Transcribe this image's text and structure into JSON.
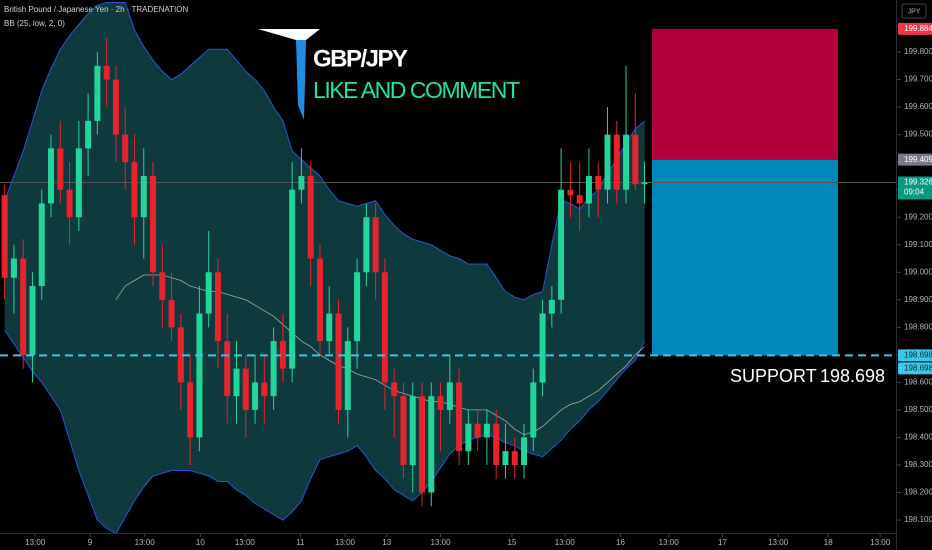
{
  "header": {
    "symbol_title": "British Pound / Japanese Yen · 2h · TRADENATION",
    "indicator": "BB (25, low, 2, 0)",
    "currency": "JPY"
  },
  "chart_data": {
    "type": "candlestick",
    "title": "GBP/JPY",
    "subtitle": "LIKE AND COMMENT",
    "open": [
      199.28,
      198.98,
      199.05,
      198.7,
      198.95,
      199.25,
      199.45,
      199.3,
      199.2,
      199.45,
      199.55,
      199.75,
      199.7,
      199.5,
      199.4,
      199.2,
      199.35,
      199.0,
      198.9,
      198.8,
      198.6,
      198.4,
      198.85,
      199.0,
      198.75,
      198.55,
      198.65,
      198.5,
      198.6,
      198.55,
      198.75,
      198.65,
      199.3,
      199.35,
      199.05,
      198.75,
      198.85,
      198.5,
      198.75,
      199.0,
      199.2,
      199.0,
      198.6,
      198.55,
      198.3,
      198.55,
      198.2,
      198.55,
      198.5,
      198.6,
      198.35,
      198.45,
      198.4,
      198.45,
      198.3,
      198.35,
      198.3,
      198.4,
      198.6,
      198.85,
      198.9,
      199.3,
      199.28,
      199.25,
      199.35,
      199.3,
      199.5,
      199.3,
      199.5,
      199.32
    ],
    "high": [
      199.32,
      199.1,
      199.12,
      199.0,
      199.3,
      199.5,
      199.55,
      199.4,
      199.55,
      199.65,
      199.8,
      199.85,
      199.75,
      199.6,
      199.5,
      199.45,
      199.4,
      199.1,
      199.0,
      198.85,
      198.7,
      198.95,
      199.15,
      199.05,
      198.85,
      198.75,
      198.7,
      198.7,
      198.7,
      198.8,
      198.85,
      199.4,
      199.45,
      199.4,
      199.1,
      198.95,
      198.9,
      198.8,
      199.05,
      199.25,
      199.25,
      199.05,
      198.65,
      198.6,
      198.6,
      198.6,
      198.6,
      198.6,
      198.7,
      198.65,
      198.5,
      198.5,
      198.5,
      198.5,
      198.45,
      198.4,
      198.45,
      198.65,
      198.9,
      198.95,
      199.45,
      199.4,
      199.4,
      199.45,
      199.4,
      199.6,
      199.55,
      199.75,
      199.65,
      199.4
    ],
    "low": [
      198.9,
      198.85,
      198.65,
      198.6,
      198.9,
      199.2,
      199.25,
      199.1,
      199.15,
      199.35,
      199.5,
      199.6,
      199.4,
      199.3,
      199.1,
      199.05,
      198.95,
      198.8,
      198.75,
      198.5,
      198.3,
      198.35,
      198.8,
      198.65,
      198.45,
      198.45,
      198.4,
      198.45,
      198.45,
      198.5,
      198.6,
      198.6,
      199.25,
      198.95,
      198.7,
      198.7,
      198.45,
      198.4,
      198.65,
      198.95,
      198.9,
      198.5,
      198.4,
      198.25,
      198.2,
      198.15,
      198.15,
      198.35,
      198.45,
      198.3,
      198.3,
      198.35,
      198.3,
      198.25,
      198.25,
      198.25,
      198.25,
      198.35,
      198.55,
      198.8,
      198.85,
      199.2,
      199.15,
      199.2,
      199.2,
      199.25,
      199.25,
      199.25,
      199.3,
      199.25
    ],
    "close": [
      198.98,
      199.05,
      198.7,
      198.95,
      199.25,
      199.45,
      199.3,
      199.2,
      199.45,
      199.55,
      199.75,
      199.7,
      199.5,
      199.4,
      199.2,
      199.35,
      199.0,
      198.9,
      198.8,
      198.6,
      198.4,
      198.85,
      199.0,
      198.75,
      198.55,
      198.65,
      198.5,
      198.6,
      198.55,
      198.75,
      198.65,
      199.3,
      199.35,
      199.05,
      198.75,
      198.85,
      198.5,
      198.75,
      199.0,
      199.2,
      199.0,
      198.6,
      198.55,
      198.3,
      198.55,
      198.2,
      198.55,
      198.5,
      198.6,
      198.35,
      198.45,
      198.4,
      198.45,
      198.3,
      198.35,
      198.3,
      198.4,
      198.6,
      198.85,
      198.9,
      199.3,
      199.28,
      199.25,
      199.35,
      199.3,
      199.5,
      199.3,
      199.5,
      199.32,
      199.326
    ],
    "colors": {
      "up": "#22d69a",
      "down": "#e8232d"
    },
    "bollinger": {
      "upper": [
        199.26,
        199.35,
        199.44,
        199.55,
        199.66,
        199.74,
        199.81,
        199.86,
        199.9,
        199.94,
        199.97,
        199.98,
        199.98,
        199.98,
        199.88,
        199.82,
        199.77,
        199.73,
        199.7,
        199.72,
        199.75,
        199.78,
        199.81,
        199.81,
        199.81,
        199.77,
        199.73,
        199.7,
        199.66,
        199.6,
        199.55,
        199.44,
        199.41,
        199.38,
        199.35,
        199.3,
        199.26,
        199.25,
        199.24,
        199.25,
        199.26,
        199.21,
        199.17,
        199.14,
        199.12,
        199.11,
        199.1,
        199.08,
        199.06,
        199.05,
        199.03,
        199.03,
        199.03,
        198.98,
        198.93,
        198.91,
        198.9,
        198.92,
        198.93,
        199.1,
        199.26,
        199.25,
        199.23,
        199.27,
        199.3,
        199.36,
        199.41,
        199.47,
        199.52,
        199.55
      ],
      "middle": [
        null,
        null,
        null,
        null,
        null,
        null,
        null,
        null,
        null,
        null,
        null,
        null,
        198.9,
        198.95,
        198.97,
        198.99,
        198.99,
        198.99,
        198.98,
        198.97,
        198.95,
        198.94,
        198.93,
        198.93,
        198.92,
        198.91,
        198.9,
        198.88,
        198.86,
        198.84,
        198.81,
        198.78,
        198.75,
        198.73,
        198.7,
        198.68,
        198.66,
        198.65,
        198.63,
        198.62,
        198.61,
        198.59,
        198.57,
        198.56,
        198.55,
        198.54,
        198.53,
        198.53,
        198.52,
        198.51,
        198.5,
        198.5,
        198.5,
        198.48,
        198.46,
        198.43,
        198.41,
        198.42,
        198.44,
        198.47,
        198.5,
        198.52,
        198.53,
        198.55,
        198.57,
        198.6,
        198.63,
        198.66,
        198.7,
        198.73
      ],
      "lower": [
        198.79,
        198.74,
        198.69,
        198.64,
        198.6,
        198.55,
        198.5,
        198.39,
        198.28,
        198.19,
        198.1,
        198.07,
        198.05,
        198.11,
        198.17,
        198.22,
        198.26,
        198.27,
        198.28,
        198.28,
        198.28,
        198.27,
        198.26,
        198.24,
        198.24,
        198.21,
        198.19,
        198.16,
        198.14,
        198.12,
        198.1,
        198.13,
        198.17,
        198.25,
        198.32,
        198.33,
        198.34,
        198.35,
        198.37,
        198.33,
        198.28,
        198.25,
        198.21,
        198.19,
        198.17,
        198.2,
        198.24,
        198.29,
        198.34,
        198.37,
        198.39,
        198.4,
        198.41,
        198.4,
        198.38,
        198.37,
        198.35,
        198.34,
        198.33,
        198.36,
        198.39,
        198.43,
        198.46,
        198.5,
        198.53,
        198.57,
        198.61,
        198.65,
        198.68,
        198.75
      ],
      "line_color": "#2f52d6",
      "middle_color": "#c8c8c8",
      "fill_color": "#0e3a3d"
    },
    "ylim": [
      198.053,
      199.989
    ],
    "yticks": [
      {
        "value": 198.1,
        "label": "198.100"
      },
      {
        "value": 198.2,
        "label": "198.200"
      },
      {
        "value": 198.3,
        "label": "198.300"
      },
      {
        "value": 198.4,
        "label": "198.400"
      },
      {
        "value": 198.5,
        "label": "198.500"
      },
      {
        "value": 198.6,
        "label": "198.600"
      },
      {
        "value": 198.7,
        "label": "198.700"
      },
      {
        "value": 198.8,
        "label": "198.800"
      },
      {
        "value": 198.9,
        "label": "198.900"
      },
      {
        "value": 199.0,
        "label": "199.000"
      },
      {
        "value": 199.1,
        "label": "199.100"
      },
      {
        "value": 199.2,
        "label": "199.200"
      },
      {
        "value": 199.3,
        "label": "199.300"
      },
      {
        "value": 199.4,
        "label": "199.400"
      },
      {
        "value": 199.5,
        "label": "199.500"
      },
      {
        "value": 199.6,
        "label": "199.600"
      },
      {
        "value": 199.7,
        "label": "199.700"
      },
      {
        "value": 199.8,
        "label": "199.800"
      }
    ],
    "xlim": [
      -0.5,
      96
    ],
    "xticks": [
      {
        "value": 3.3,
        "label": "13:00"
      },
      {
        "value": 9.2,
        "label": "9"
      },
      {
        "value": 15.1,
        "label": "13:00"
      },
      {
        "value": 21.1,
        "label": "10"
      },
      {
        "value": 25.9,
        "label": "13:00"
      },
      {
        "value": 31.9,
        "label": "11"
      },
      {
        "value": 36.7,
        "label": "13:00"
      },
      {
        "value": 41.2,
        "label": "13"
      },
      {
        "value": 47.0,
        "label": "13:00"
      },
      {
        "value": 54.7,
        "label": "15"
      },
      {
        "value": 60.4,
        "label": "13:00"
      },
      {
        "value": 66.4,
        "label": "16"
      },
      {
        "value": 71.6,
        "label": "13:00"
      },
      {
        "value": 77.4,
        "label": "17"
      },
      {
        "value": 83.4,
        "label": "13:00"
      },
      {
        "value": 88.8,
        "label": "18"
      },
      {
        "value": 94.4,
        "label": "13:00"
      }
    ],
    "countdown": "09:04",
    "position": {
      "stop": 199.884,
      "entry": 199.409,
      "target": 198.698,
      "stop_color": "#b2003a",
      "target_color": "#0089b8"
    },
    "support": {
      "label": "SUPPORT",
      "value": 198.698,
      "color": "#3bc8e8"
    }
  }
}
